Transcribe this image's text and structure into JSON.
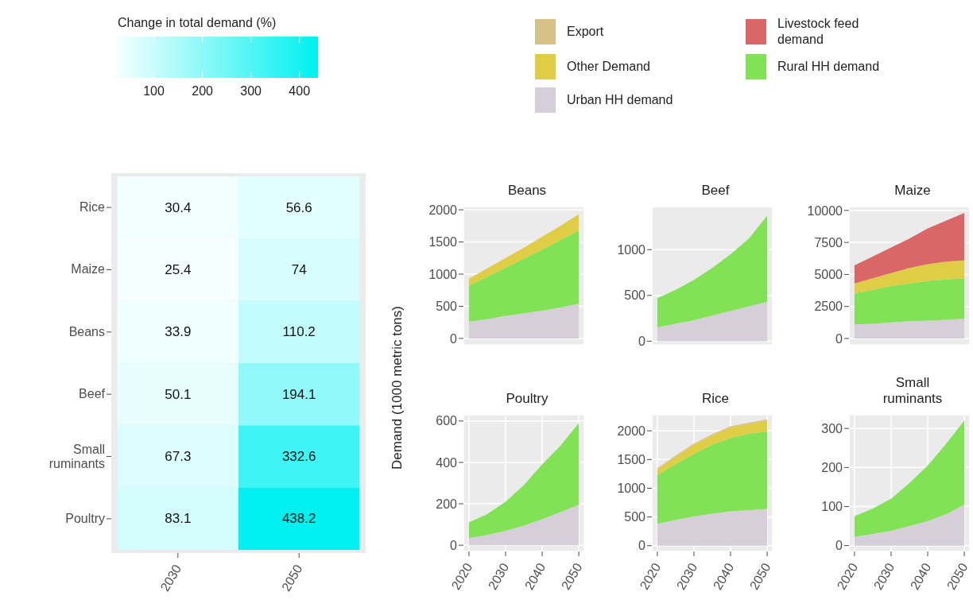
{
  "chart_data": [
    {
      "type": "heatmap",
      "clabel": "Change in total demand (%)",
      "categories": [
        "2030",
        "2050"
      ],
      "y_categories": [
        "Rice",
        "Maize",
        "Beans",
        "Beef",
        "Small ruminants",
        "Poultry"
      ],
      "cells": [
        [
          30.4,
          56.6
        ],
        [
          25.4,
          74
        ],
        [
          33.9,
          110.2
        ],
        [
          50.1,
          194.1
        ],
        [
          67.3,
          332.6
        ],
        [
          83.1,
          438.2
        ]
      ],
      "clim": [
        25.4,
        438.2
      ],
      "cticks": [
        100,
        200,
        300,
        400
      ],
      "data_labels": true
    },
    {
      "type": "area",
      "title": "Beans",
      "ylabel": "Demand (1000 metric tons)",
      "stacked": true,
      "grid": true,
      "legend": "top right",
      "tick_labels": "y",
      "x": [
        2020,
        2025,
        2030,
        2035,
        2040,
        2045,
        2050
      ],
      "xlim": [
        2018.5,
        2051.5
      ],
      "xticks": [
        2020,
        2030,
        2040,
        2050
      ],
      "ylim": [
        -100,
        2050
      ],
      "yticks": [
        0,
        500,
        1000,
        1500,
        2000
      ],
      "series": [
        {
          "name": "Urban HH demand",
          "color": "#d6ced8",
          "values": [
            260,
            300,
            350,
            390,
            430,
            480,
            540
          ]
        },
        {
          "name": "Rural HH demand",
          "color": "#80e254",
          "values": [
            560,
            660,
            750,
            850,
            950,
            1050,
            1140
          ]
        },
        {
          "name": "Other Demand",
          "color": "#dfcd45",
          "values": [
            110,
            130,
            150,
            170,
            200,
            220,
            250
          ]
        }
      ]
    },
    {
      "type": "area",
      "title": "Beef",
      "stacked": true,
      "grid": true,
      "legend": "top right",
      "tick_labels": "y",
      "x": [
        2020,
        2025,
        2030,
        2035,
        2040,
        2045,
        2050
      ],
      "xlim": [
        2018.5,
        2051.5
      ],
      "xticks": [
        2020,
        2030,
        2040,
        2050
      ],
      "ylim": [
        -40,
        1470
      ],
      "yticks": [
        0,
        500,
        1000
      ],
      "series": [
        {
          "name": "Urban HH demand",
          "color": "#d6ced8",
          "values": [
            150,
            190,
            230,
            280,
            330,
            380,
            430
          ]
        },
        {
          "name": "Rural HH demand",
          "color": "#80e254",
          "values": [
            320,
            370,
            440,
            520,
            620,
            740,
            940
          ]
        }
      ]
    },
    {
      "type": "area",
      "title": "Maize",
      "stacked": true,
      "grid": true,
      "legend": "top left",
      "tick_labels": "y",
      "x": [
        2020,
        2025,
        2030,
        2035,
        2040,
        2045,
        2050
      ],
      "xlim": [
        2018.5,
        2051.5
      ],
      "xticks": [
        2020,
        2030,
        2040,
        2050
      ],
      "ylim": [
        -500,
        10300
      ],
      "yticks": [
        0,
        2500,
        5000,
        7500,
        10000
      ],
      "series": [
        {
          "name": "Urban HH demand",
          "color": "#d6ced8",
          "values": [
            1100,
            1150,
            1250,
            1350,
            1400,
            1450,
            1550
          ]
        },
        {
          "name": "Rural HH demand",
          "color": "#80e254",
          "values": [
            2400,
            2650,
            2850,
            2950,
            3100,
            3150,
            3150
          ]
        },
        {
          "name": "Other Demand",
          "color": "#dfcd45",
          "values": [
            800,
            900,
            1000,
            1200,
            1300,
            1400,
            1400
          ]
        },
        {
          "name": "Livestock feed demand",
          "color": "#d96767",
          "values": [
            1400,
            1700,
            2000,
            2300,
            2800,
            3200,
            3700
          ]
        }
      ]
    },
    {
      "type": "area",
      "title": "Poultry",
      "stacked": true,
      "grid": true,
      "legend": "top right",
      "x": [
        2020,
        2025,
        2030,
        2035,
        2040,
        2045,
        2050
      ],
      "xlim": [
        2018.5,
        2051.5
      ],
      "xticks": [
        2020,
        2030,
        2040,
        2050
      ],
      "ylim": [
        -30,
        630
      ],
      "yticks": [
        0,
        200,
        400,
        600
      ],
      "series": [
        {
          "name": "Urban HH demand",
          "color": "#d6ced8",
          "values": [
            35,
            50,
            70,
            95,
            125,
            160,
            195
          ]
        },
        {
          "name": "Rural HH demand",
          "color": "#80e254",
          "values": [
            75,
            100,
            140,
            195,
            265,
            320,
            395
          ]
        }
      ]
    },
    {
      "type": "area",
      "title": "Rice",
      "stacked": true,
      "grid": true,
      "legend": "top left",
      "x": [
        2020,
        2025,
        2030,
        2035,
        2040,
        2045,
        2050
      ],
      "xlim": [
        2018.5,
        2051.5
      ],
      "xticks": [
        2020,
        2030,
        2040,
        2050
      ],
      "ylim": [
        -100,
        2280
      ],
      "yticks": [
        0,
        500,
        1000,
        1500,
        2000
      ],
      "series": [
        {
          "name": "Urban HH demand",
          "color": "#d6ced8",
          "values": [
            380,
            450,
            510,
            560,
            600,
            620,
            640
          ]
        },
        {
          "name": "Rural HH demand",
          "color": "#80e254",
          "values": [
            850,
            970,
            1090,
            1200,
            1280,
            1330,
            1350
          ]
        },
        {
          "name": "Other Demand",
          "color": "#dfcd45",
          "values": [
            100,
            130,
            160,
            160,
            180,
            170,
            190
          ]
        },
        {
          "name": "Export",
          "color": "#d6c189",
          "values": [
            20,
            20,
            20,
            20,
            20,
            20,
            20
          ]
        }
      ]
    },
    {
      "type": "area",
      "title": "Small ruminants",
      "stacked": true,
      "grid": true,
      "legend": "top right",
      "x": [
        2020,
        2025,
        2030,
        2035,
        2040,
        2045,
        2050
      ],
      "xlim": [
        2018.5,
        2051.5
      ],
      "xticks": [
        2020,
        2030,
        2040,
        2050
      ],
      "ylim": [
        -15,
        335
      ],
      "yticks": [
        0,
        100,
        200,
        300
      ],
      "series": [
        {
          "name": "Urban HH demand",
          "color": "#d6ced8",
          "values": [
            22,
            30,
            38,
            50,
            63,
            80,
            105
          ]
        },
        {
          "name": "Rural HH demand",
          "color": "#80e254",
          "values": [
            53,
            65,
            82,
            110,
            142,
            180,
            215
          ]
        }
      ]
    }
  ]
}
